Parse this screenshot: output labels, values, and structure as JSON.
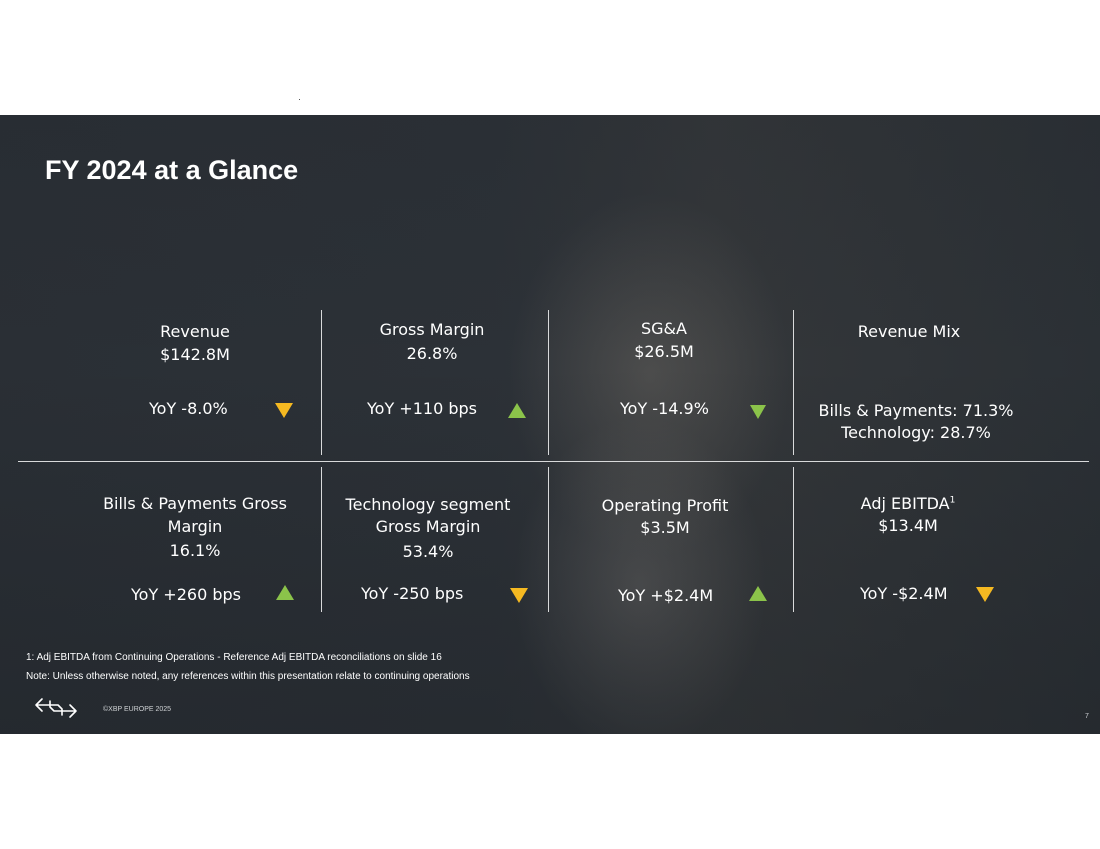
{
  "slide": {
    "title": "FY 2024 at a Glance",
    "page_number": "7",
    "copyright": "©XBP EUROPE 2025"
  },
  "kpis": {
    "revenue": {
      "label": "Revenue",
      "value": "$142.8M",
      "yoy": "YoY -8.0%",
      "trend": "down",
      "trend_color": "#f5b921"
    },
    "gross_margin": {
      "label": "Gross Margin",
      "value": "26.8%",
      "yoy": "YoY  +110 bps",
      "trend": "up",
      "trend_color": "#8bc34a"
    },
    "sga": {
      "label": "SG&A",
      "value": "$26.5M",
      "yoy": "YoY -14.9%",
      "trend": "down",
      "trend_color": "#8bc34a"
    },
    "revenue_mix": {
      "label": "Revenue Mix",
      "line1": "Bills & Payments: 71.3%",
      "line2": "Technology: 28.7%"
    },
    "bills_gross_margin": {
      "label_line1": "Bills & Payments Gross",
      "label_line2": "Margin",
      "value": "16.1%",
      "yoy": "YoY  +260 bps",
      "trend": "up",
      "trend_color": "#8bc34a"
    },
    "tech_gross_margin": {
      "label_line1": "Technology segment",
      "label_line2": "Gross Margin",
      "value": "53.4%",
      "yoy": "YoY  -250 bps",
      "trend": "down",
      "trend_color": "#f5b921"
    },
    "operating_profit": {
      "label": "Operating Profit",
      "value": "$3.5M",
      "yoy": "YoY +$2.4M",
      "trend": "up",
      "trend_color": "#8bc34a"
    },
    "adj_ebitda": {
      "label": "Adj EBITDA",
      "footnote_mark": "1",
      "value": "$13.4M",
      "yoy": "YoY  -$2.4M",
      "trend": "down",
      "trend_color": "#f5b921"
    }
  },
  "footnotes": {
    "note1": "1: Adj EBITDA from Continuing Operations - Reference Adj EBITDA reconciliations on slide 16",
    "note2": "Note: Unless otherwise noted, any references within this presentation relate to continuing operations"
  },
  "icons": {
    "logo": "xbp-arrows-logo-icon"
  }
}
